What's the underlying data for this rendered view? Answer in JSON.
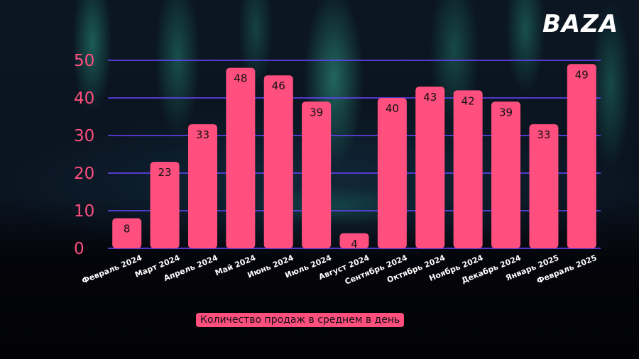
{
  "brand": {
    "logo_text": "BAZA"
  },
  "caption": "Количество продаж в среднем в день",
  "colors": {
    "bar": "#ff4f7f",
    "grid": "#6b45ff",
    "tick": "#ff4f7f",
    "bar_label": "#111111"
  },
  "chart_data": {
    "type": "bar",
    "title": "",
    "xlabel": "",
    "ylabel": "",
    "categories": [
      "Февраль 2024",
      "Март 2024",
      "Апрель 2024",
      "Май 2024",
      "Июнь 2024",
      "Июль 2024",
      "Август 2024",
      "Сентябрь 2024",
      "Октябрь 2024",
      "Ноябрь 2024",
      "Декабрь 2024",
      "Январь 2025",
      "Февраль 2025"
    ],
    "values": [
      8,
      23,
      33,
      48,
      46,
      39,
      4,
      40,
      43,
      42,
      39,
      33,
      49
    ],
    "yticks": [
      0,
      10,
      20,
      30,
      40,
      50
    ],
    "ylim": [
      0,
      50
    ],
    "grid": true,
    "data_labels": true
  }
}
